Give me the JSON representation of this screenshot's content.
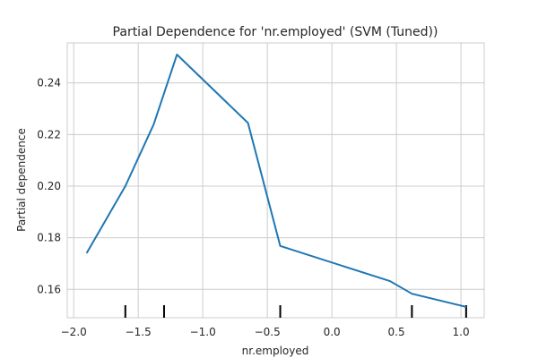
{
  "chart_data": {
    "type": "line",
    "title": "Partial Dependence for 'nr.employed' (SVM (Tuned))",
    "xlabel": "nr.employed",
    "ylabel": "Partial dependence",
    "xlim": [
      -2.05,
      1.18
    ],
    "ylim": [
      0.149,
      0.2555
    ],
    "grid": true,
    "colors": {
      "line": "#1f77b4",
      "grid": "#cccccc",
      "axes": "#cccccc",
      "rug": "#000000"
    },
    "x_ticks": [
      -2.0,
      -1.5,
      -1.0,
      -0.5,
      0.0,
      0.5,
      1.0
    ],
    "x_tick_labels": [
      "−2.0",
      "−1.5",
      "−1.0",
      "−0.5",
      "0.0",
      "0.5",
      "1.0"
    ],
    "y_ticks": [
      0.16,
      0.18,
      0.2,
      0.22,
      0.24
    ],
    "y_tick_labels": [
      "0.16",
      "0.18",
      "0.20",
      "0.22",
      "0.24"
    ],
    "series": [
      {
        "x": [
          -1.9,
          -1.6,
          -1.38,
          -1.2,
          -0.65,
          -0.4,
          0.45,
          0.62,
          1.04
        ],
        "y": [
          0.174,
          0.2,
          0.224,
          0.251,
          0.2245,
          0.1768,
          0.1632,
          0.1583,
          0.1532
        ]
      }
    ],
    "deciles": [
      -1.6,
      -1.3,
      -0.4,
      0.62,
      1.04
    ]
  }
}
